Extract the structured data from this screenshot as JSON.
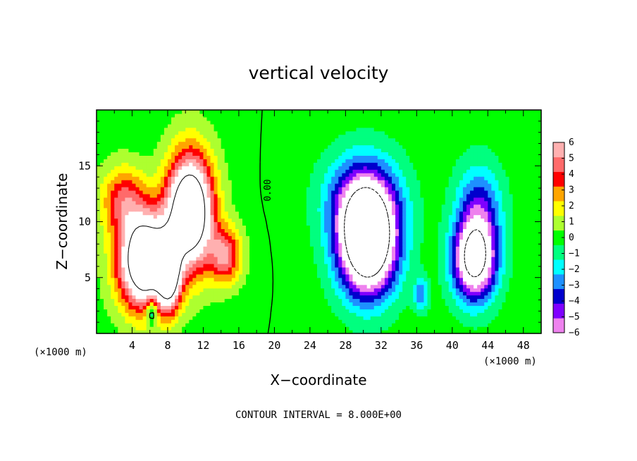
{
  "chart_data": {
    "type": "heatmap",
    "title": "vertical velocity",
    "xlabel": "X−coordinate",
    "ylabel": "Z−coordinate",
    "x_unit_left": "(×1000 m)",
    "x_unit_right": "(×1000 m)",
    "xlim": [
      0,
      50
    ],
    "ylim": [
      0,
      20
    ],
    "x_ticks": [
      4,
      8,
      12,
      16,
      20,
      24,
      28,
      32,
      36,
      40,
      44,
      48
    ],
    "y_ticks": [
      5,
      10,
      15
    ],
    "colorbar": {
      "min": -6,
      "max": 6,
      "ticks": [
        6,
        5,
        4,
        3,
        2,
        1,
        0,
        -1,
        -2,
        -3,
        -4,
        -5,
        -6
      ],
      "tick_labels": [
        "6",
        "5",
        "4",
        "3",
        "2",
        "1",
        "0",
        "−1",
        "−2",
        "−3",
        "−4",
        "−5",
        "−6"
      ],
      "colors": [
        "#ee82ee",
        "#7f00ff",
        "#0000cd",
        "#1e90ff",
        "#00ffff",
        "#00ff7f",
        "#00ff00",
        "#adff2f",
        "#ffff00",
        "#ffa500",
        "#ff0000",
        "#ff6a6a",
        "#ffb0b0"
      ],
      "out_of_range_color": "#ffffff"
    },
    "contour_annotation": "0.00",
    "contour_interval_text": "CONTOUR INTERVAL = 8.000E+00",
    "features": [
      {
        "kind": "updraft",
        "x": 5.5,
        "z": 6.5,
        "sx": 3.0,
        "sz": 4.2,
        "value": 12
      },
      {
        "kind": "updraft",
        "x": 10.5,
        "z": 11.0,
        "sx": 2.6,
        "sz": 5.0,
        "value": 12
      },
      {
        "kind": "updraft",
        "x": 8.2,
        "z": 5.0,
        "sx": 1.2,
        "sz": 3.0,
        "value": 7
      },
      {
        "kind": "updraft",
        "x": 14.5,
        "z": 7.0,
        "sx": 1.8,
        "sz": 2.5,
        "value": 5
      },
      {
        "kind": "updraft",
        "x": 3.0,
        "z": 12.0,
        "sx": 2.5,
        "sz": 3.0,
        "value": 4
      },
      {
        "kind": "downdraft",
        "x": 30.5,
        "z": 8.0,
        "sx": 3.2,
        "sz": 4.5,
        "value": -12
      },
      {
        "kind": "downdraft",
        "x": 30.0,
        "z": 12.0,
        "sx": 4.0,
        "sz": 4.0,
        "value": -5
      },
      {
        "kind": "downdraft",
        "x": 42.5,
        "z": 6.5,
        "sx": 2.4,
        "sz": 3.5,
        "value": -9
      },
      {
        "kind": "downdraft",
        "x": 43.0,
        "z": 11.0,
        "sx": 2.5,
        "sz": 4.0,
        "value": -4
      },
      {
        "kind": "downdraft",
        "x": 36.5,
        "z": 3.5,
        "sx": 0.8,
        "sz": 1.5,
        "value": -3
      },
      {
        "kind": "downdraft",
        "x": 6.2,
        "z": 2.0,
        "sx": 0.6,
        "sz": 1.2,
        "value": -4
      }
    ]
  }
}
